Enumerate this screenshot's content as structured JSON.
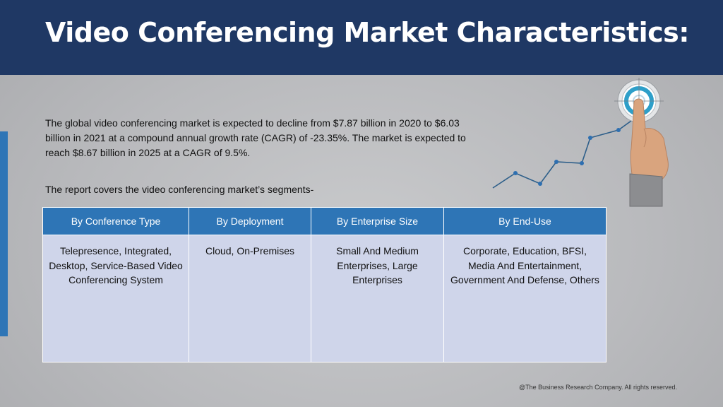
{
  "header": {
    "title": "Video Conferencing Market Characteristics:"
  },
  "body": {
    "paragraph_1": "The global video conferencing market is expected to decline from $7.87 billion in 2020 to $6.03 billion in 2021 at a compound annual growth rate (CAGR) of -23.35%. The market is expected to reach $8.67 billion in 2025 at a CAGR of 9.5%.",
    "paragraph_2": "The report covers the video conferencing market’s segments-"
  },
  "table": {
    "headers": [
      "By Conference Type",
      "By Deployment",
      "By Enterprise Size",
      "By End-Use"
    ],
    "cells": [
      "Telepresence, Integrated, Desktop, Service-Based Video Conferencing System",
      "Cloud, On-Premises",
      "Small And Medium Enterprises, Large Enterprises",
      "Corporate, Education, BFSI, Media And Entertainment, Government And Defense, Others"
    ]
  },
  "illustration": {
    "icon": "target-growth-hand-icon"
  },
  "colors": {
    "header_bg": "#1f3864",
    "accent_blue": "#2e75b6",
    "table_cell_bg": "#cfd5ea",
    "line_color": "#2e5f8a"
  },
  "footer": {
    "copyright": "@The Business Research Company. All rights reserved."
  }
}
